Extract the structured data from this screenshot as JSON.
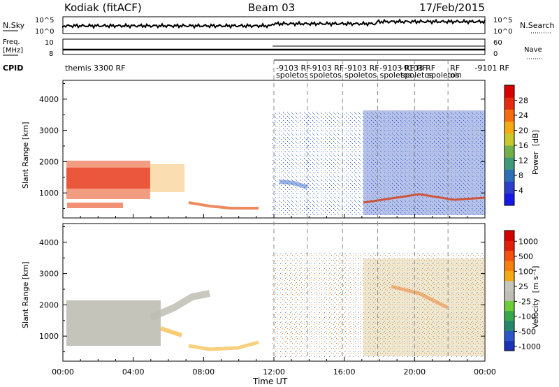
{
  "header": {
    "station": "Kodiak (fitACF)",
    "beam": "Beam 03",
    "date": "17/Feb/2015"
  },
  "chart_data": {
    "type": "heatmap",
    "x_axis": {
      "label": "Time UT",
      "range_hours": [
        0,
        24
      ],
      "tick_labels": [
        "00:00",
        "04:00",
        "08:00",
        "12:00",
        "16:00",
        "20:00",
        "00:00"
      ],
      "tick_hours": [
        0,
        4,
        8,
        12,
        16,
        20,
        24
      ]
    },
    "top_strips": {
      "nsky": {
        "label": "N.Sky",
        "right_label": "N.Search",
        "left_ticks": [
          "10^5",
          "10^0"
        ],
        "right_ticks": [
          "10^5",
          "10^0"
        ],
        "scale": "log"
      },
      "freq": {
        "label": "Freq.",
        "unit": "[MHz]",
        "right_label": "Nave",
        "left_ticks": [
          "10",
          "8"
        ],
        "right_ticks": [
          "60",
          "0"
        ]
      },
      "cpid": {
        "label": "CPID",
        "segments": [
          {
            "start_hour": 0.0,
            "text": "themis 3300 RF"
          },
          {
            "start_hour": 12.0,
            "text": "-9103 RF"
          },
          {
            "start_hour": 13.9,
            "text": "-9103 RF"
          },
          {
            "start_hour": 15.9,
            "text": "-9103 RF"
          },
          {
            "start_hour": 17.9,
            "text": "-9103 RF"
          },
          {
            "start_hour": 19.1,
            "text": "-9103 RF"
          },
          {
            "start_hour": 20.0,
            "text": "RF"
          },
          {
            "start_hour": 21.9,
            "text": "RF"
          },
          {
            "start_hour": 23.3,
            "text": "-9101 RF"
          }
        ],
        "sub_segments": [
          {
            "start_hour": 12.0,
            "text": "spoletos"
          },
          {
            "start_hour": 13.9,
            "text": "spoletos"
          },
          {
            "start_hour": 15.9,
            "text": "spoletos"
          },
          {
            "start_hour": 17.9,
            "text": "spoletos"
          },
          {
            "start_hour": 19.1,
            "text": "spoletos"
          },
          {
            "start_hour": 20.6,
            "text": "spoletos"
          },
          {
            "start_hour": 21.9,
            "text": "oin"
          }
        ],
        "dashed_hours": [
          12.0,
          13.9,
          15.9,
          17.9,
          20.0,
          21.9
        ]
      }
    },
    "panels": [
      {
        "quantity": "Power",
        "unit": "[dB]",
        "ylabel": "Slant Range [km]",
        "ylim": [
          200,
          4600
        ],
        "y_ticks": [
          1000,
          2000,
          3000,
          4000
        ],
        "colorbar": {
          "tick_labels": [
            "4",
            "8",
            "12",
            "16",
            "20",
            "24",
            "28"
          ],
          "colors": [
            "#1717e6",
            "#2d3fc8",
            "#2e6fb5",
            "#3e9a79",
            "#74b04a",
            "#c9c92d",
            "#f3aa14",
            "#f56b10",
            "#e62a0f",
            "#d80000"
          ]
        }
      },
      {
        "quantity": "Velocity",
        "unit": "[m s⁻¹]",
        "ylabel": "Slant Range [km]",
        "ylim": [
          200,
          4600
        ],
        "y_ticks": [
          1000,
          2000,
          3000,
          4000
        ],
        "colorbar": {
          "tick_labels": [
            "1000",
            "500",
            "100",
            "25",
            "-25",
            "-100",
            "-500",
            "-1000"
          ],
          "colors": [
            "#1d30b8",
            "#2d55c7",
            "#27876c",
            "#35a84d",
            "#6ccc3a",
            "#bebeb4",
            "#c5c5bb",
            "#f3aa14",
            "#f57f10",
            "#f2520e",
            "#e0200a",
            "#d40000"
          ]
        }
      }
    ]
  }
}
